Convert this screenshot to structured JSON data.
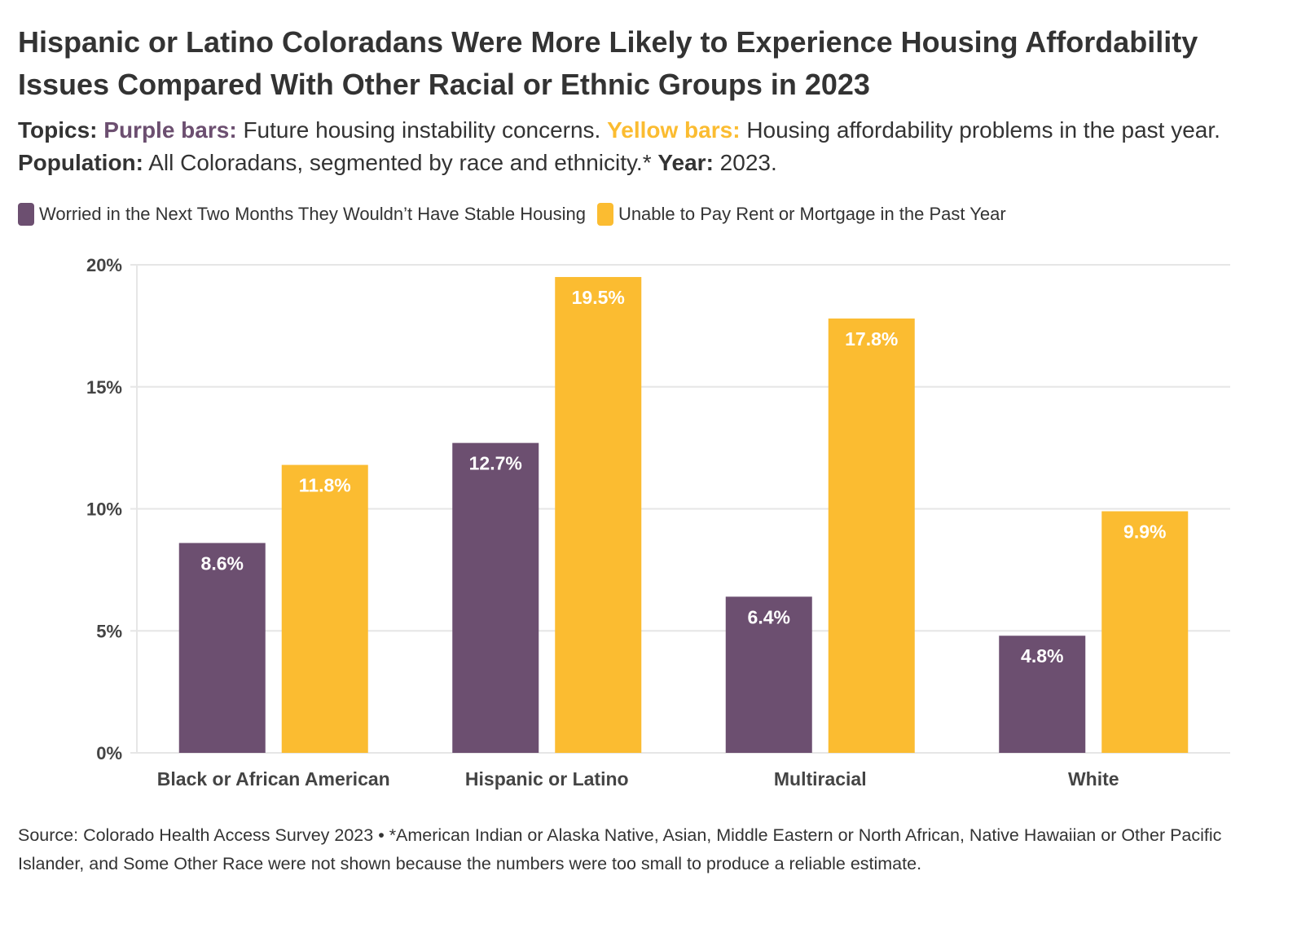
{
  "title": "Hispanic or Latino Coloradans Were More Likely to Experience Housing Affordability Issues Compared With Other Racial or Ethnic Groups in 2023",
  "subtitle": {
    "topics_label": "Topics:",
    "purple_label": "Purple bars:",
    "purple_text": "Future housing instability concerns.",
    "yellow_label": "Yellow bars:",
    "yellow_text": "Housing affordability problems in the past year.",
    "population_label": "Population:",
    "population_text": "All Coloradans, segmented by race and ethnicity.*",
    "year_label": "Year:",
    "year_text": "2023."
  },
  "colors": {
    "purple": "#6c4f70",
    "yellow": "#fbbc31",
    "grid": "#e6e6e6",
    "text": "#333333",
    "axis_text": "#444444"
  },
  "chart_data": {
    "type": "bar",
    "categories": [
      "Black or African American",
      "Hispanic or Latino",
      "Multiracial",
      "White"
    ],
    "series": [
      {
        "name": "Worried in the Next Two Months They Wouldn’t Have Stable Housing",
        "color": "#6c4f70",
        "values": [
          8.6,
          12.7,
          6.4,
          4.8
        ],
        "labels": [
          "8.6%",
          "12.7%",
          "6.4%",
          "4.8%"
        ]
      },
      {
        "name": "Unable to Pay Rent or Mortgage in the Past Year",
        "color": "#fbbc31",
        "values": [
          11.8,
          19.5,
          17.8,
          9.9
        ],
        "labels": [
          "11.8%",
          "19.5%",
          "17.8%",
          "9.9%"
        ]
      }
    ],
    "ylim": [
      0,
      20
    ],
    "yticks": [
      0,
      5,
      10,
      15,
      20
    ],
    "ytick_labels": [
      "0%",
      "5%",
      "10%",
      "15%",
      "20%"
    ],
    "grid": true,
    "legend_position": "top-left"
  },
  "source": "Source: Colorado Health Access Survey 2023 • *American Indian or Alaska Native, Asian, Middle Eastern or North African, Native Hawaiian or Other Pacific Islander, and Some Other Race were not shown because the numbers were too small to produce a reliable estimate."
}
